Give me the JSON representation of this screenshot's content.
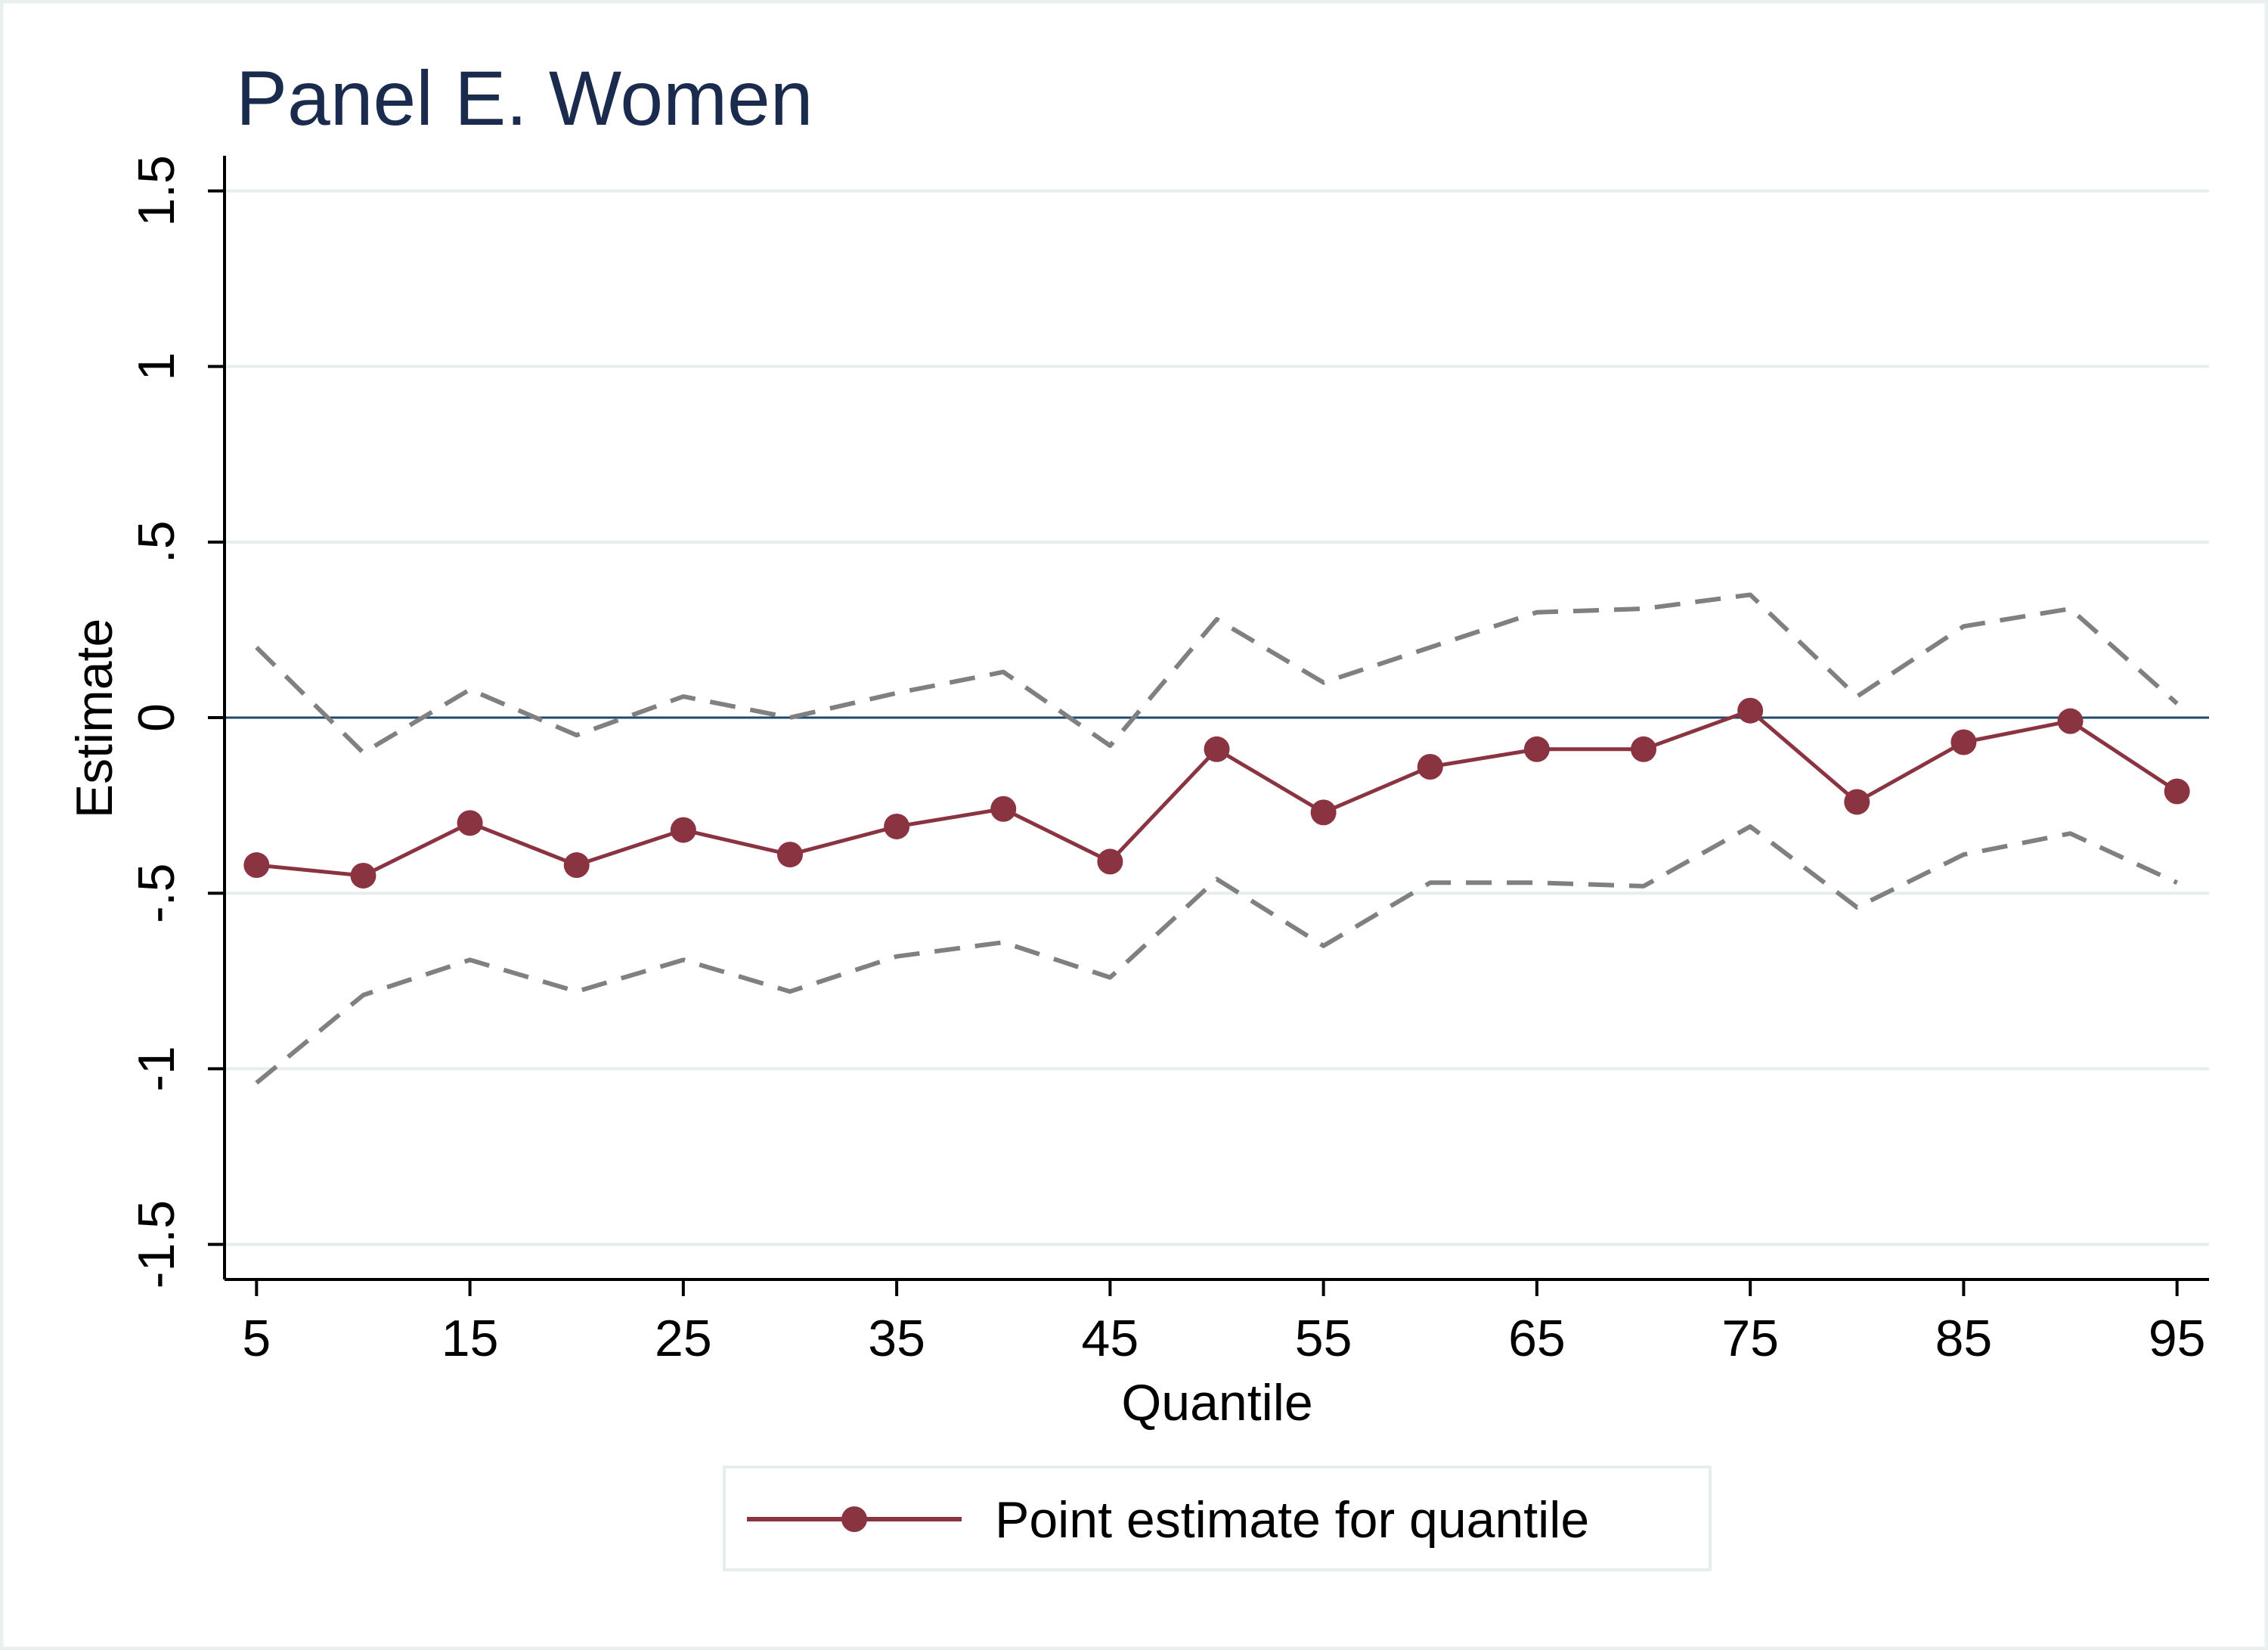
{
  "chart_data": {
    "type": "line",
    "title": "Panel E. Women",
    "xlabel": "Quantile",
    "ylabel": "Estimate",
    "x": [
      5,
      10,
      15,
      20,
      25,
      30,
      35,
      40,
      45,
      50,
      55,
      60,
      65,
      70,
      75,
      80,
      85,
      90,
      95
    ],
    "xlim": [
      3.5,
      96.5
    ],
    "ylim": [
      -1.6,
      1.6
    ],
    "xticks": [
      5,
      15,
      25,
      35,
      45,
      55,
      65,
      75,
      85,
      95
    ],
    "xtick_labels": [
      "5",
      "15",
      "25",
      "35",
      "45",
      "55",
      "65",
      "75",
      "85",
      "95"
    ],
    "yticks": [
      -1.5,
      -1,
      -0.5,
      0,
      0.5,
      1,
      1.5
    ],
    "ytick_labels": [
      "-1.5",
      "-1",
      "-.5",
      "0",
      ".5",
      "1",
      "1.5"
    ],
    "grid": true,
    "reference_line": 0,
    "legend_position": "bottom",
    "series": [
      {
        "name": "Point estimate for quantile",
        "style": "solid-with-markers",
        "color": "#8b3441",
        "values": [
          -0.42,
          -0.45,
          -0.3,
          -0.42,
          -0.32,
          -0.39,
          -0.31,
          -0.26,
          -0.41,
          -0.09,
          -0.27,
          -0.14,
          -0.09,
          -0.09,
          0.02,
          -0.24,
          -0.07,
          -0.01,
          -0.21
        ]
      },
      {
        "style": "dashed",
        "color": "#808080",
        "values": [
          0.2,
          -0.1,
          0.08,
          -0.05,
          0.06,
          0.0,
          0.07,
          0.13,
          -0.08,
          0.28,
          0.1,
          0.2,
          0.3,
          0.31,
          0.35,
          0.06,
          0.26,
          0.31,
          0.04
        ]
      },
      {
        "style": "dashed",
        "color": "#808080",
        "values": [
          -1.04,
          -0.79,
          -0.69,
          -0.78,
          -0.69,
          -0.78,
          -0.68,
          -0.64,
          -0.74,
          -0.46,
          -0.65,
          -0.47,
          -0.47,
          -0.48,
          -0.31,
          -0.54,
          -0.39,
          -0.33,
          -0.47
        ]
      }
    ]
  },
  "colors": {
    "title": "#1a2b4e",
    "axis": "#000000",
    "grid": "#e7eeec",
    "reference_line": "#1f4a6b",
    "frame": "#e9f0ef"
  }
}
